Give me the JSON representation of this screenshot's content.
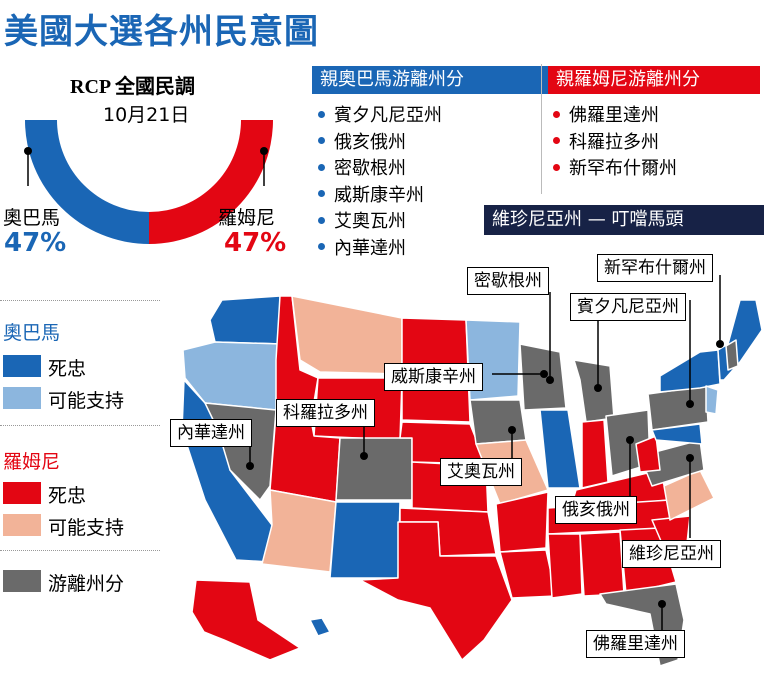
{
  "title": "美國大選各州民意圖",
  "poll": {
    "source": "RCP 全國民調",
    "date": "10月21日",
    "obama": {
      "name": "奧巴馬",
      "value": "47%",
      "share": 0.5
    },
    "romney": {
      "name": "羅姆尼",
      "value": "47%",
      "share": 0.5
    }
  },
  "lean_obama": {
    "header": "親奧巴馬游離州分",
    "states": [
      "賓夕凡尼亞州",
      "俄亥俄州",
      "密歇根州",
      "威斯康辛州",
      "艾奧瓦州",
      "內華達州"
    ]
  },
  "lean_romney": {
    "header": "親羅姆尼游離州分",
    "states": [
      "佛羅里達州",
      "科羅拉多州",
      "新罕布什爾州"
    ]
  },
  "tossup": {
    "header": "維珍尼亞州 — 叮噹馬頭"
  },
  "legend": {
    "obama_heading": "奧巴馬",
    "obama_solid": "死忠",
    "obama_lean": "可能支持",
    "romney_heading": "羅姆尼",
    "romney_solid": "死忠",
    "romney_lean": "可能支持",
    "swing": "游離州分"
  },
  "callouts": {
    "michigan": "密歇根州",
    "new_hampshire": "新罕布什爾州",
    "pennsylvania": "賓夕凡尼亞州",
    "wisconsin": "威斯康辛州",
    "colorado": "科羅拉多州",
    "nevada": "內華達州",
    "iowa": "艾奧瓦州",
    "ohio": "俄亥俄州",
    "virginia": "維珍尼亞州",
    "florida": "佛羅里達州"
  },
  "colors": {
    "obama_solid": "#1a66b5",
    "obama_lean": "#8cb6de",
    "romney_solid": "#e30613",
    "romney_lean": "#f2b398",
    "swing": "#6a6a6a",
    "tossup_bg": "#172246"
  }
}
